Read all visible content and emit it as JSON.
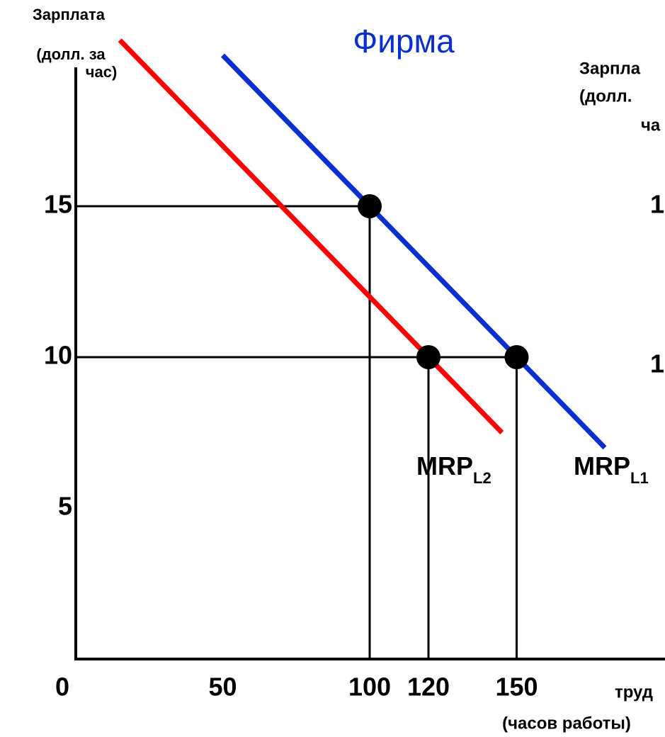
{
  "chart_data": {
    "type": "line",
    "title": "Фирма",
    "y_label": [
      "Зарплата",
      "(долл. за",
      "час)"
    ],
    "x_label": [
      "труд",
      "(часов работы)"
    ],
    "xlim": [
      0,
      200
    ],
    "ylim": [
      0,
      20
    ],
    "xticks": [
      0,
      50,
      100,
      120,
      150
    ],
    "yticks": [
      5,
      10,
      15
    ],
    "grid": false,
    "series": [
      {
        "name": "MRP",
        "subscript": "L1",
        "color": "#0a2fd0",
        "x": [
          50,
          180
        ],
        "values": [
          20,
          7
        ]
      },
      {
        "name": "MRP",
        "subscript": "L2",
        "color": "#ff0000",
        "x": [
          15,
          145
        ],
        "values": [
          20.5,
          7.5
        ]
      }
    ],
    "points": {
      "color": "#000000",
      "x": [
        100,
        120,
        150
      ],
      "values": [
        15,
        10,
        10
      ]
    },
    "right_panel": {
      "y_label": [
        "Зарпла",
        "(долл.",
        "ча"
      ],
      "yticks": [
        "1",
        "1"
      ]
    }
  }
}
